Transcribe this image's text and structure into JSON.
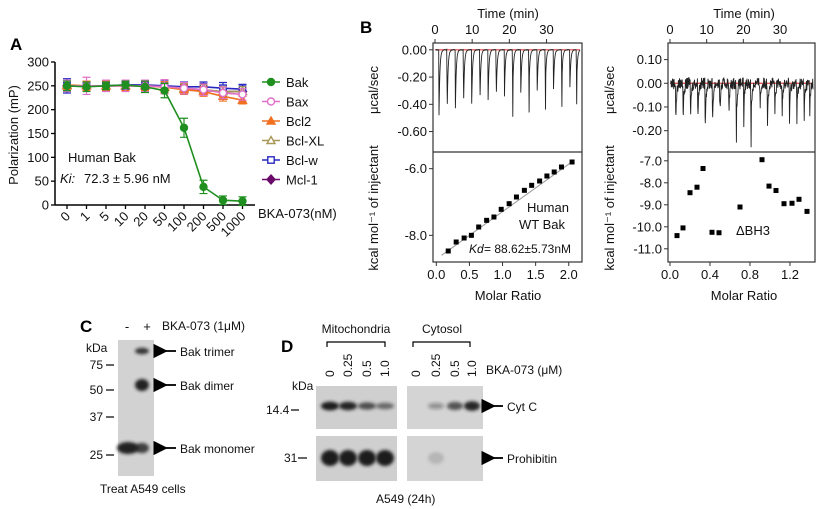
{
  "panels": {
    "A": "A",
    "B": "B",
    "C": "C",
    "D": "D"
  },
  "chart_data": [
    {
      "panel": "A",
      "type": "line",
      "ylabel": "Polarization (mP)",
      "xlabel": "BKA-073(nM)",
      "ylim": [
        0,
        300
      ],
      "yticks": [
        "0",
        "50",
        "100",
        "150",
        "200",
        "250",
        "300"
      ],
      "categories": [
        "0",
        "1",
        "5",
        "10",
        "20",
        "50",
        "100",
        "200",
        "500",
        "1000"
      ],
      "annotation_1": "Human Bak",
      "annotation_ki_label": "Ki:",
      "annotation_ki_value": "72.3 ± 5.96 nM",
      "series": [
        {
          "name": "Bak",
          "color": "#1f8f1f",
          "marker": "filled-circle",
          "values": [
            250,
            248,
            250,
            252,
            248,
            240,
            162,
            38,
            10,
            8
          ],
          "errors": [
            10,
            10,
            8,
            8,
            12,
            15,
            20,
            14,
            9,
            9
          ]
        },
        {
          "name": "Bax",
          "color": "#e070c8",
          "marker": "open-circle",
          "values": [
            250,
            250,
            250,
            250,
            250,
            248,
            245,
            242,
            235,
            232
          ],
          "errors": [
            12,
            18,
            12,
            12,
            12,
            15,
            12,
            12,
            12,
            12
          ]
        },
        {
          "name": "Bcl2",
          "color": "#f07020",
          "marker": "filled-triangle",
          "values": [
            252,
            250,
            250,
            250,
            250,
            247,
            242,
            238,
            228,
            220
          ],
          "errors": [
            10,
            10,
            10,
            10,
            10,
            12,
            10,
            10,
            10,
            8
          ]
        },
        {
          "name": "Bcl-XL",
          "color": "#a89858",
          "marker": "open-triangle",
          "values": [
            250,
            250,
            250,
            250,
            250,
            248,
            245,
            242,
            238,
            238
          ],
          "errors": [
            10,
            10,
            10,
            10,
            10,
            10,
            10,
            10,
            10,
            10
          ]
        },
        {
          "name": "Bcl-w",
          "color": "#2828c0",
          "marker": "open-square",
          "values": [
            250,
            250,
            250,
            252,
            252,
            250,
            248,
            248,
            245,
            243
          ],
          "errors": [
            15,
            10,
            10,
            10,
            10,
            12,
            10,
            10,
            12,
            10
          ]
        },
        {
          "name": "Mcl-1",
          "color": "#6a0a6a",
          "marker": "filled-diamond",
          "values": [
            250,
            250,
            250,
            250,
            250,
            248,
            243,
            240,
            238,
            238
          ],
          "errors": [
            10,
            10,
            10,
            10,
            10,
            10,
            10,
            10,
            10,
            10
          ]
        }
      ]
    },
    {
      "panel": "B-left",
      "type": "line+scatter",
      "top": {
        "xlabel": "Time (min)",
        "xticks": [
          "0",
          "10",
          "20",
          "30"
        ],
        "xlim": [
          0,
          39
        ],
        "ylabel": "μcal/sec",
        "yticks": [
          "0.00",
          "-0.20",
          "-0.40",
          "-0.60"
        ],
        "ylim": [
          -0.75,
          0.05
        ],
        "baseline_color": "#e04040",
        "injection_times_min": [
          1,
          3.2,
          5.4,
          7.6,
          9.8,
          12,
          14.2,
          16.4,
          18.6,
          20.8,
          23,
          25.2,
          27.4,
          29.6,
          31.8,
          34,
          36.2,
          38
        ],
        "injection_peaks": [
          -0.72,
          -0.68,
          -0.64,
          -0.61,
          -0.59,
          -0.57,
          -0.55,
          -0.53,
          -0.51,
          -0.49,
          -0.47,
          -0.46,
          -0.45,
          -0.44,
          -0.43,
          -0.42,
          -0.41,
          -0.4
        ]
      },
      "bottom": {
        "xlabel": "Molar Ratio",
        "xticks": [
          "0.0",
          "0.5",
          "1.0",
          "1.5",
          "2.0"
        ],
        "xlim": [
          -0.05,
          2.2
        ],
        "ylabel": "kcal mol⁻¹ of injectant",
        "yticks": [
          "-6.0",
          "-8.0"
        ],
        "ylim": [
          -8.8,
          -5.5
        ],
        "points_x": [
          0.18,
          0.3,
          0.42,
          0.53,
          0.64,
          0.76,
          0.87,
          0.98,
          1.1,
          1.21,
          1.33,
          1.44,
          1.56,
          1.67,
          1.78,
          1.89,
          2.05
        ],
        "points_y": [
          -8.47,
          -8.2,
          -8.08,
          -8.0,
          -7.75,
          -7.55,
          -7.45,
          -7.22,
          -7.05,
          -6.85,
          -6.65,
          -6.5,
          -6.37,
          -6.22,
          -6.1,
          -5.95,
          -5.8
        ],
        "annotation_1": "Human",
        "annotation_2": "WT Bak",
        "kd_label": "Kd",
        "kd_value": "= 88.62±5.73nM"
      }
    },
    {
      "panel": "B-right",
      "type": "line+scatter",
      "top": {
        "xlabel": "Time (min)",
        "xticks": [
          "0",
          "10",
          "20",
          "30"
        ],
        "xlim": [
          0,
          39
        ],
        "ylabel": "μcal/sec",
        "yticks": [
          "0.10",
          "0.00",
          "-0.10",
          "-0.20"
        ],
        "ylim": [
          -0.29,
          0.17
        ],
        "baseline_color": "#e04040",
        "injection_times_min": [
          1.5,
          3.5,
          5.5,
          7.5,
          9.5,
          11.5,
          13.5,
          16,
          18,
          20,
          22,
          24.5,
          26.5,
          28.5,
          30.5,
          32.5,
          34.5,
          36.5,
          38
        ],
        "injection_peaks": [
          -0.24,
          -0.22,
          -0.21,
          -0.2,
          -0.27,
          -0.25,
          -0.2,
          -0.17,
          -0.26,
          -0.2,
          -0.27,
          -0.12,
          -0.2,
          -0.18,
          -0.15,
          -0.2,
          -0.2,
          -0.19,
          -0.15
        ]
      },
      "bottom": {
        "xlabel": "Molar Ratio",
        "xticks": [
          "0.0",
          "0.4",
          "0.8",
          "1.2"
        ],
        "xlim": [
          -0.02,
          1.45
        ],
        "ylabel": "kcal mol⁻¹ of injectant",
        "yticks": [
          "-7.0",
          "-8.0",
          "-9.0",
          "-10.0",
          "-11.0"
        ],
        "ylim": [
          -11.6,
          -6.6
        ],
        "points_x": [
          0.07,
          0.13,
          0.2,
          0.27,
          0.33,
          0.42,
          0.49,
          0.7,
          0.92,
          0.99,
          1.06,
          1.14,
          1.22,
          1.29,
          1.37
        ],
        "points_y": [
          -10.4,
          -10.05,
          -8.45,
          -8.2,
          -7.35,
          -10.25,
          -10.27,
          -9.1,
          -6.95,
          -8.15,
          -8.35,
          -8.95,
          -8.93,
          -8.75,
          -9.3
        ],
        "annotation_1": "ΔBH3"
      }
    }
  ],
  "blot_c": {
    "lanes": [
      "-",
      "+"
    ],
    "treatment": "BKA-073 (1μM)",
    "kda_label": "kDa",
    "markers": [
      "75",
      "50",
      "37",
      "25"
    ],
    "bands": [
      {
        "label": "Bak trimer",
        "intensity": [
          0,
          0.8
        ]
      },
      {
        "label": "Bak dimer",
        "intensity": [
          0,
          1.0
        ]
      },
      {
        "label": "Bak monomer",
        "intensity": [
          1.0,
          0.7
        ]
      }
    ],
    "caption": "Treat A549 cells"
  },
  "blot_d": {
    "groups": [
      "Mitochondria",
      "Cytosol"
    ],
    "lane_labels": [
      "0",
      "0.25",
      "0.5",
      "1.0"
    ],
    "treatment": "BKA-073 (μM)",
    "kda_label": "kDa",
    "markers": [
      "14.4",
      "31"
    ],
    "rows": [
      {
        "label": "Cyt C",
        "mito": [
          1.0,
          0.9,
          0.6,
          0.4
        ],
        "cyto": [
          0,
          0.3,
          0.7,
          1.0
        ]
      },
      {
        "label": "Prohibitin",
        "mito": [
          1.0,
          1.0,
          1.0,
          1.0
        ],
        "cyto": [
          0,
          0.05,
          0,
          0
        ]
      }
    ],
    "caption": "A549 (24h)"
  }
}
